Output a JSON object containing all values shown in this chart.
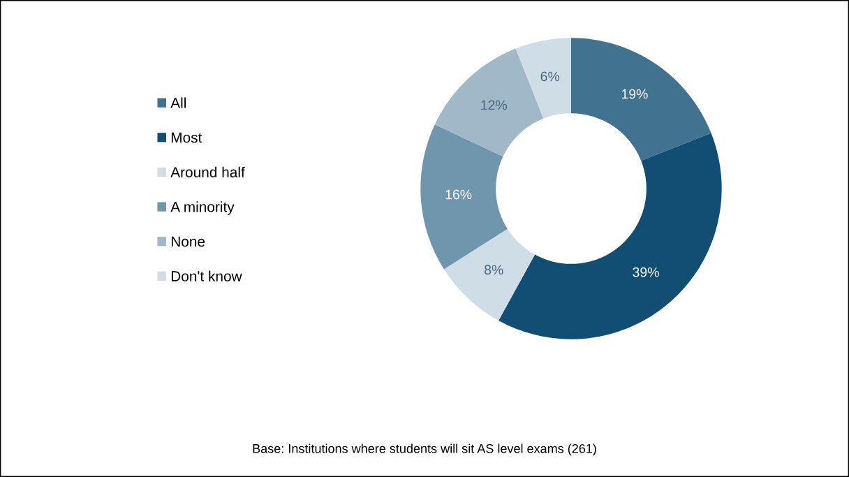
{
  "chart_data": {
    "type": "donut",
    "categories": [
      "All",
      "Most",
      "Around half",
      "A minority",
      "None",
      "Don't know"
    ],
    "values": [
      19,
      39,
      8,
      16,
      12,
      6
    ],
    "colors": [
      "#41728f",
      "#124e73",
      "#cfdde6",
      "#7096ae",
      "#a0b8c8",
      "#cfdde6"
    ],
    "value_labels": [
      "19%",
      "39%",
      "8%",
      "16%",
      "12%",
      "6%"
    ],
    "legend": "left",
    "annotations": [
      "Base: Institutions where students will sit AS level exams (261)"
    ]
  }
}
